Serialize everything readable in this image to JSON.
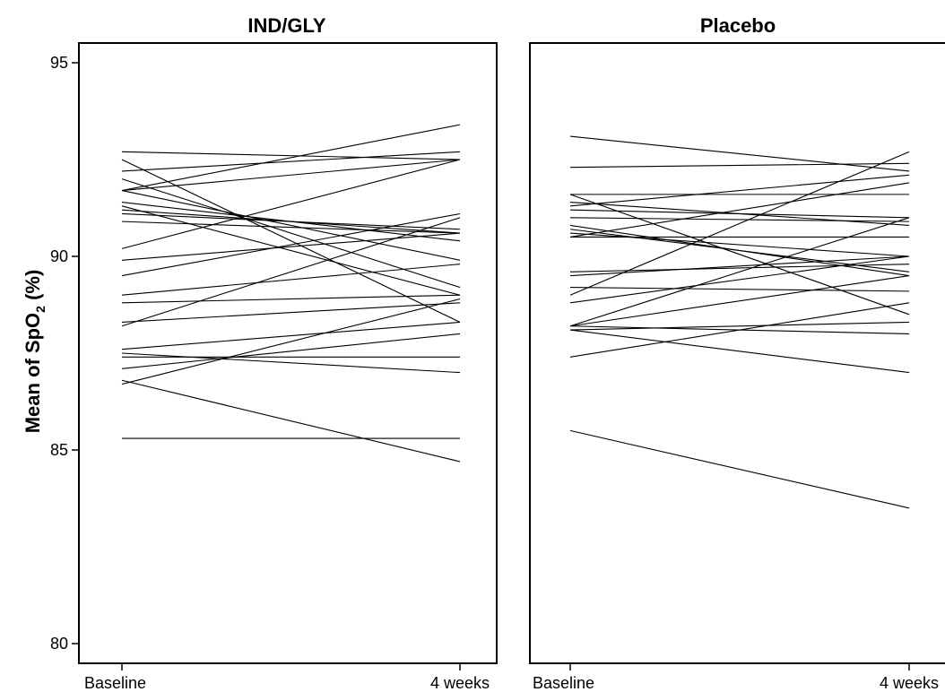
{
  "chart_data": {
    "type": "line",
    "ylabel": "Mean of SpO2 (%)",
    "ylabel_parts": {
      "main": "Mean of SpO",
      "subscript": "2",
      "suffix": " (%)"
    },
    "ylim": [
      80,
      95
    ],
    "yticks": [
      80,
      85,
      90,
      95
    ],
    "x": [
      "Baseline",
      "4 weeks"
    ],
    "grid": false,
    "panels": [
      {
        "title": "IND/GLY",
        "series": [
          {
            "values": [
              92.7,
              92.5
            ]
          },
          {
            "values": [
              92.5,
              88.3
            ]
          },
          {
            "values": [
              92.2,
              92.7
            ]
          },
          {
            "values": [
              92.0,
              89.2
            ]
          },
          {
            "values": [
              91.7,
              93.4
            ]
          },
          {
            "values": [
              91.7,
              92.5
            ]
          },
          {
            "values": [
              91.7,
              89.9
            ]
          },
          {
            "values": [
              91.4,
              90.4
            ]
          },
          {
            "values": [
              91.3,
              89.0
            ]
          },
          {
            "values": [
              91.2,
              90.6
            ]
          },
          {
            "values": [
              91.1,
              90.7
            ]
          },
          {
            "values": [
              90.9,
              90.6
            ]
          },
          {
            "values": [
              90.2,
              92.5
            ]
          },
          {
            "values": [
              89.9,
              90.6
            ]
          },
          {
            "values": [
              89.5,
              91.1
            ]
          },
          {
            "values": [
              89.0,
              89.8
            ]
          },
          {
            "values": [
              88.8,
              89.0
            ]
          },
          {
            "values": [
              88.3,
              88.8
            ]
          },
          {
            "values": [
              88.2,
              91.0
            ]
          },
          {
            "values": [
              87.6,
              88.3
            ]
          },
          {
            "values": [
              87.5,
              87.0
            ]
          },
          {
            "values": [
              87.4,
              87.4
            ]
          },
          {
            "values": [
              87.1,
              88.0
            ]
          },
          {
            "values": [
              86.8,
              84.7
            ]
          },
          {
            "values": [
              86.7,
              88.9
            ]
          },
          {
            "values": [
              85.3,
              85.3
            ]
          }
        ]
      },
      {
        "title": "Placebo",
        "series": [
          {
            "values": [
              93.1,
              92.2
            ]
          },
          {
            "values": [
              92.3,
              92.4
            ]
          },
          {
            "values": [
              91.6,
              88.5
            ]
          },
          {
            "values": [
              91.6,
              91.6
            ]
          },
          {
            "values": [
              91.4,
              90.8
            ]
          },
          {
            "values": [
              91.3,
              92.1
            ]
          },
          {
            "values": [
              91.2,
              91.0
            ]
          },
          {
            "values": [
              91.0,
              90.9
            ]
          },
          {
            "values": [
              90.8,
              89.5
            ]
          },
          {
            "values": [
              90.6,
              90.0
            ]
          },
          {
            "values": [
              90.5,
              91.9
            ]
          },
          {
            "values": [
              90.5,
              90.5
            ]
          },
          {
            "values": [
              90.7,
              89.6
            ]
          },
          {
            "values": [
              89.6,
              89.8
            ]
          },
          {
            "values": [
              89.5,
              90.0
            ]
          },
          {
            "values": [
              89.2,
              89.1
            ]
          },
          {
            "values": [
              89.0,
              92.7
            ]
          },
          {
            "values": [
              88.8,
              90.0
            ]
          },
          {
            "values": [
              88.2,
              91.0
            ]
          },
          {
            "values": [
              88.2,
              89.5
            ]
          },
          {
            "values": [
              88.1,
              88.3
            ]
          },
          {
            "values": [
              88.1,
              87.0
            ]
          },
          {
            "values": [
              88.2,
              88.0
            ]
          },
          {
            "values": [
              87.4,
              88.8
            ]
          },
          {
            "values": [
              85.5,
              83.5
            ]
          }
        ]
      }
    ]
  }
}
